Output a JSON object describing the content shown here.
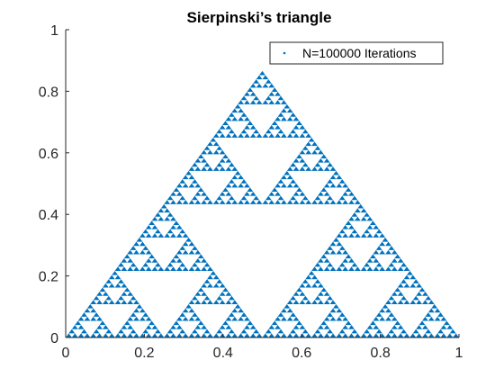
{
  "chart_data": {
    "type": "scatter",
    "title": "Sierpinski’s triangle",
    "xlabel": "",
    "ylabel": "",
    "xlim": [
      0,
      1
    ],
    "ylim": [
      0,
      1
    ],
    "x_ticks": [
      0,
      0.2,
      0.4,
      0.6,
      0.8,
      1
    ],
    "y_ticks": [
      0,
      0.2,
      0.4,
      0.6,
      0.8,
      1
    ],
    "x_tick_labels": [
      "0",
      "0.2",
      "0.4",
      "0.6",
      "0.8",
      "1"
    ],
    "y_tick_labels": [
      "0",
      "0.2",
      "0.4",
      "0.6",
      "0.8",
      "1"
    ],
    "grid": false,
    "legend_position": "top-right",
    "series": [
      {
        "name": "N=100000 Iterations",
        "color": "#0072BD",
        "marker": "point",
        "vertices": [
          [
            0,
            0
          ],
          [
            1,
            0
          ],
          [
            0.5,
            0.866
          ]
        ]
      }
    ]
  }
}
